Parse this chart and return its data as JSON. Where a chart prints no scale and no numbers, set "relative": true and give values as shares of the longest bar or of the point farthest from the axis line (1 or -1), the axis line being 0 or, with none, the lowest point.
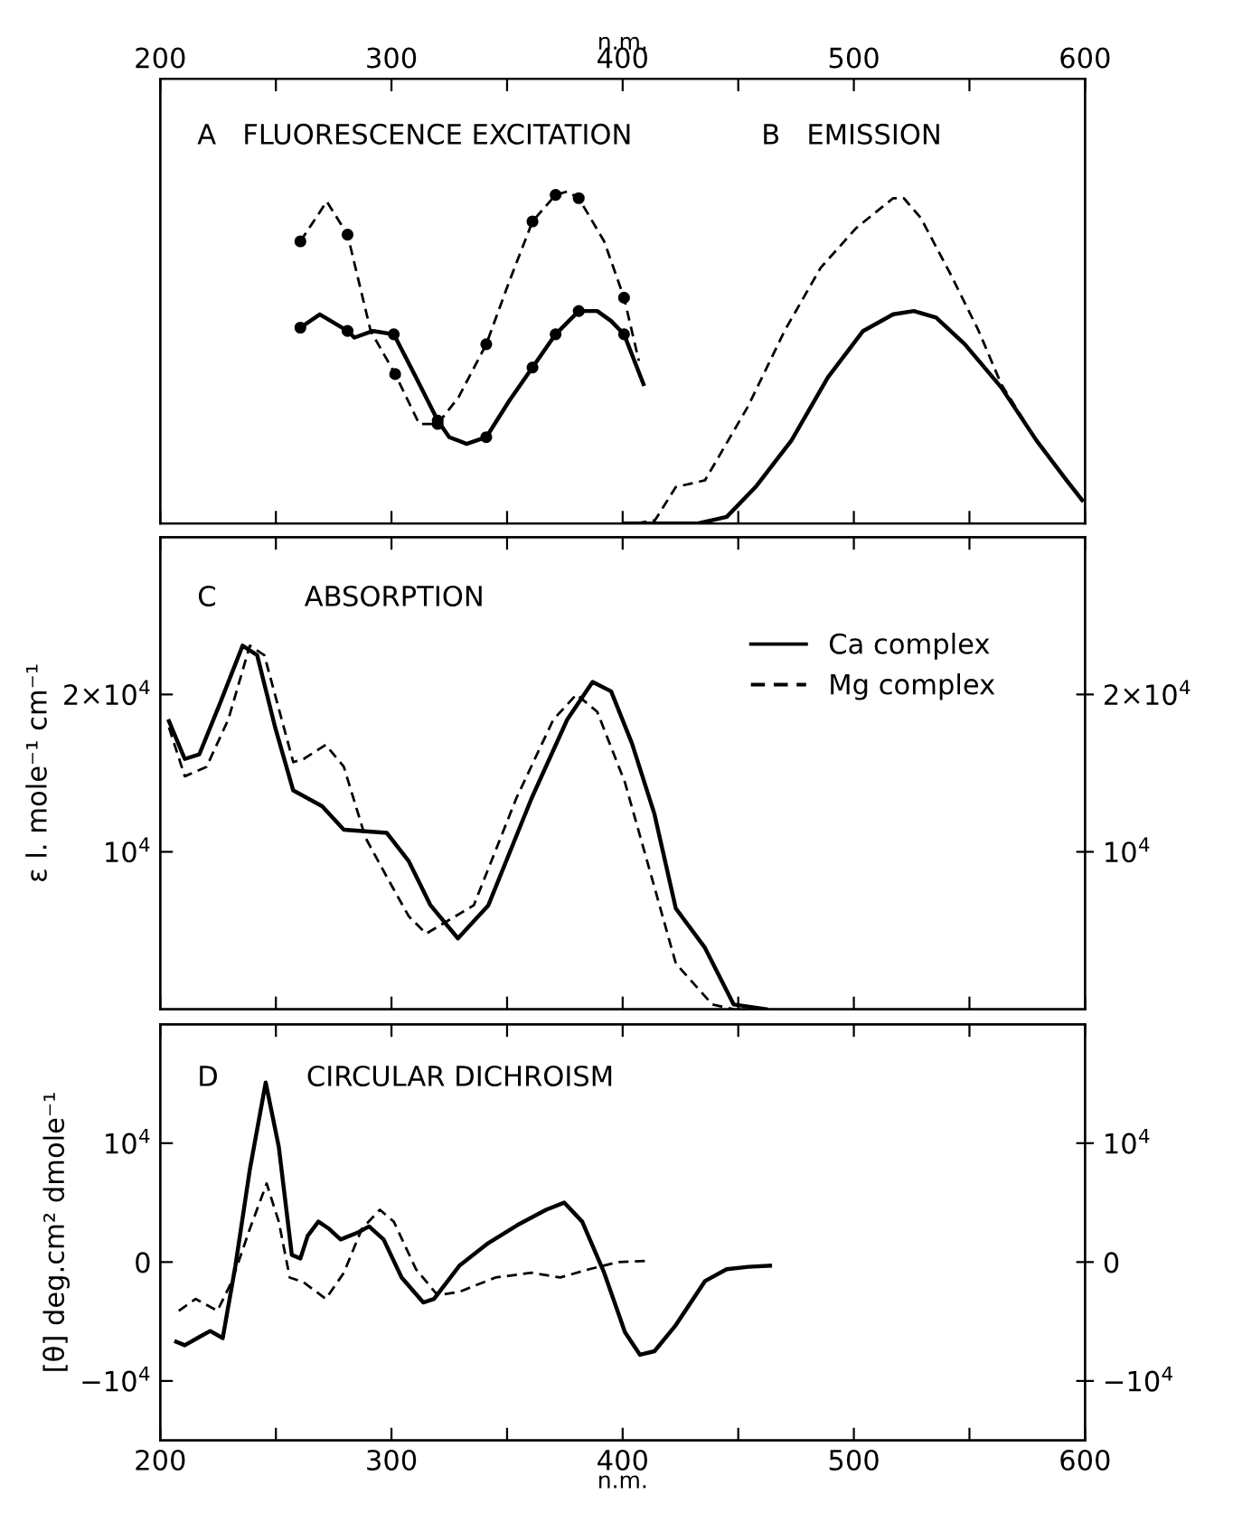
{
  "chart_data": [
    {
      "type": "line",
      "title": "A   FLUORESCENCE EXCITATION",
      "annotations": [
        "B   EMISSION"
      ],
      "relative": true,
      "tick_labels": false,
      "xlim": [
        200,
        600
      ],
      "xticks": [
        200,
        {
          "value": 250,
          "label": null
        },
        300,
        {
          "value": 350,
          "label": null
        },
        400,
        {
          "value": 450,
          "label": null
        },
        500,
        {
          "value": 550,
          "label": null
        },
        600
      ],
      "x2lim": [
        200,
        600
      ],
      "x2ticks": [
        200,
        {
          "value": 250,
          "label": null
        },
        300,
        {
          "value": 350,
          "label": null
        },
        400,
        {
          "value": 450,
          "label": null
        },
        500,
        {
          "value": 550,
          "label": null
        },
        600
      ],
      "x2label": "n.m.",
      "series": [
        {
          "color": "#000000",
          "line_style": "dashed",
          "x": [
            260.6,
            272,
            281,
            291,
            301.6,
            312,
            320,
            329,
            341,
            351,
            361,
            371,
            376,
            381,
            392,
            400.6,
            407
          ],
          "values": [
            0.85,
            0.97,
            0.87,
            0.58,
            0.45,
            0.3,
            0.3,
            0.38,
            0.54,
            0.73,
            0.91,
            0.99,
            1.0,
            0.98,
            0.85,
            0.68,
            0.49
          ]
        },
        {
          "color": "#000000",
          "line_style": "solid",
          "x": [
            260.6,
            269,
            281,
            284,
            292,
            301,
            310.6,
            320,
            325,
            332.5,
            341,
            351,
            361,
            371,
            381,
            389,
            395,
            400.6,
            409
          ],
          "values": [
            0.59,
            0.63,
            0.58,
            0.56,
            0.58,
            0.57,
            0.44,
            0.31,
            0.26,
            0.24,
            0.26,
            0.37,
            0.47,
            0.57,
            0.64,
            0.64,
            0.61,
            0.57,
            0.42
          ]
        },
        {
          "type": "scatter",
          "color": "#000000",
          "marker": "circle",
          "x": [
            260.6,
            281,
            301.6,
            320,
            341,
            361,
            371,
            381,
            400.6
          ],
          "values": [
            0.85,
            0.87,
            0.45,
            0.3,
            0.54,
            0.91,
            0.99,
            0.98,
            0.68
          ]
        },
        {
          "type": "scatter",
          "color": "#000000",
          "marker": "circle",
          "x": [
            260.6,
            281,
            301,
            320,
            341,
            361,
            371,
            381,
            400.6
          ],
          "values": [
            0.59,
            0.58,
            0.57,
            0.31,
            0.26,
            0.47,
            0.57,
            0.64,
            0.57
          ]
        },
        {
          "color": "#000000",
          "line_style": "dashed",
          "x": [
            406,
            414,
            423,
            435.6,
            454,
            470,
            485.6,
            501,
            517,
            521.6,
            529,
            541.9,
            554,
            563.75,
            579,
            592,
            598.75
          ],
          "values": [
            0,
            0.01,
            0.11,
            0.13,
            0.35,
            0.58,
            0.77,
            0.89,
            0.98,
            0.98,
            0.92,
            0.75,
            0.58,
            0.42,
            0.25,
            0.13,
            0.07
          ]
        },
        {
          "color": "#000000",
          "line_style": "solid",
          "x": [
            401,
            432.5,
            445,
            457.5,
            473,
            488.75,
            504,
            517,
            526,
            535.6,
            548,
            563.75,
            579,
            592,
            598.75
          ],
          "values": [
            0,
            0,
            0.02,
            0.11,
            0.25,
            0.44,
            0.58,
            0.63,
            0.64,
            0.62,
            0.54,
            0.41,
            0.25,
            0.13,
            0.07
          ]
        }
      ]
    },
    {
      "type": "line",
      "title": "C          ABSORPTION",
      "ylabel": "ε l. mole⁻¹ cm⁻¹",
      "tick_labels": "y",
      "legend": "top right",
      "xlim": [
        200,
        600
      ],
      "xticks": [
        200,
        {
          "value": 250,
          "label": null
        },
        300,
        {
          "value": 350,
          "label": null
        },
        400,
        {
          "value": 450,
          "label": null
        },
        500,
        {
          "value": 550,
          "label": null
        },
        600
      ],
      "ylim": [
        0,
        30000
      ],
      "yticks": [
        {
          "value": 10000,
          "label": "10$^{4}$"
        },
        {
          "value": 20000,
          "label": "2×10$^{4}$"
        }
      ],
      "y2lim": [
        0,
        30000
      ],
      "y2ticks": [
        {
          "value": 10000,
          "label": "10$^{4}$"
        },
        {
          "value": 20000,
          "label": "2×10$^{4}$"
        }
      ],
      "series": [
        {
          "name": "Ca complex",
          "color": "#000000",
          "line_style": "solid",
          "x": [
            203.75,
            210.6,
            216.9,
            226,
            235.6,
            241.9,
            249.7,
            257.5,
            270,
            279.4,
            288.75,
            298,
            307.5,
            316.9,
            328.75,
            341.9,
            360.6,
            376,
            387,
            395,
            404,
            413.75,
            423,
            435.6,
            448,
            462
          ],
          "values": [
            18300,
            15900,
            16200,
            19500,
            23100,
            22500,
            17900,
            13900,
            12900,
            11400,
            11300,
            11200,
            9400,
            6600,
            4500,
            6600,
            13400,
            18400,
            20800,
            20200,
            16900,
            12400,
            6400,
            3900,
            300,
            0
          ]
        },
        {
          "name": "Mg complex",
          "color": "#000000",
          "line_style": "dashed",
          "x": [
            203.75,
            210.6,
            220,
            229.4,
            238.75,
            245,
            257.5,
            262,
            271.6,
            279.4,
            288.75,
            298,
            307.5,
            315,
            335.6,
            354,
            370,
            380,
            389,
            401,
            410.6,
            423,
            438.75,
            448
          ],
          "values": [
            17900,
            14800,
            15400,
            18400,
            23100,
            22500,
            15700,
            15900,
            16800,
            15400,
            10900,
            8400,
            5900,
            4800,
            6600,
            13400,
            18400,
            20000,
            18900,
            14400,
            9400,
            2900,
            300,
            0
          ]
        }
      ]
    },
    {
      "type": "line",
      "title": "D          CIRCULAR DICHROISM",
      "ylabel": "[θ] deg.cm² dmole⁻¹",
      "xlabel": "n.m.",
      "xlim": [
        200,
        600
      ],
      "xticks": [
        200,
        {
          "value": 250,
          "label": null
        },
        300,
        {
          "value": 350,
          "label": null
        },
        400,
        {
          "value": 450,
          "label": null
        },
        500,
        {
          "value": 550,
          "label": null
        },
        600
      ],
      "ylim": [
        -15000,
        20000
      ],
      "yticks": [
        {
          "value": -10000,
          "label": "−10$^{4}$"
        },
        0,
        {
          "value": 10000,
          "label": "10$^{4}$"
        }
      ],
      "y2lim": [
        -15000,
        20000
      ],
      "y2ticks": [
        {
          "value": -10000,
          "label": "−10$^{4}$"
        },
        0,
        {
          "value": 10000,
          "label": "10$^{4}$"
        }
      ],
      "series": [
        {
          "color": "#000000",
          "line_style": "solid",
          "x": [
            206.9,
            210.6,
            216.9,
            221.6,
            227,
            232.5,
            238.75,
            245.6,
            251.25,
            256.9,
            260.6,
            263.75,
            268.4,
            273,
            278,
            285.6,
            290.3,
            296.6,
            304.4,
            313.75,
            318.4,
            329.4,
            341.9,
            354.4,
            366.9,
            374.7,
            382.5,
            392,
            401,
            407.5,
            413.75,
            423,
            435.6,
            445,
            454.4,
            463.75
          ],
          "values": [
            -6700,
            -7000,
            -6300,
            -5800,
            -6400,
            -300,
            7800,
            15100,
            9700,
            600,
            300,
            2200,
            3400,
            2800,
            1900,
            2500,
            3000,
            1900,
            -1300,
            -3400,
            -3100,
            -300,
            1600,
            3100,
            4400,
            5000,
            3400,
            -900,
            -5900,
            -7800,
            -7500,
            -5300,
            -1600,
            -600,
            -400,
            -300
          ]
        },
        {
          "color": "#000000",
          "line_style": "dashed",
          "x": [
            208,
            215.3,
            224.7,
            231,
            238.75,
            246,
            251.25,
            256,
            262,
            271.6,
            279.4,
            287.2,
            295,
            301,
            310.6,
            320,
            329.4,
            345,
            360.6,
            373,
            385.6,
            398,
            410.6
          ],
          "values": [
            -4100,
            -3100,
            -4100,
            -1600,
            2800,
            6600,
            3400,
            -1300,
            -1700,
            -3100,
            -900,
            2800,
            4400,
            3400,
            -600,
            -2800,
            -2500,
            -1300,
            -900,
            -1300,
            -600,
            0,
            100
          ]
        }
      ]
    }
  ]
}
